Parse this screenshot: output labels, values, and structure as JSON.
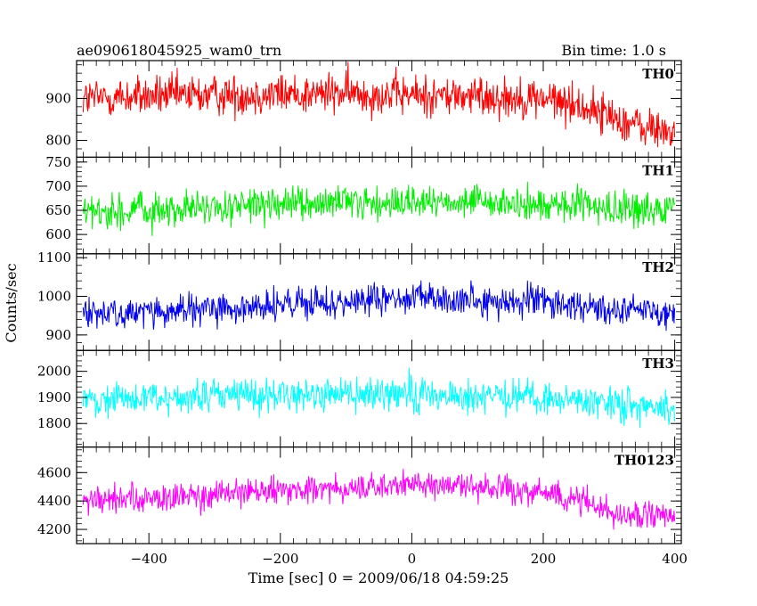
{
  "header": {
    "title": "ae090618045925_wam0_trn",
    "bin_time": "Bin time: 1.0 s"
  },
  "chart_data": [
    {
      "type": "line",
      "name": "TH0",
      "color": "#ff0000",
      "xlim": [
        -510,
        410
      ],
      "ylim": [
        760,
        990
      ],
      "yticks": [
        800,
        900
      ],
      "baseline": {
        "x": [
          -500,
          -400,
          -300,
          -200,
          -100,
          0,
          100,
          200,
          250,
          300,
          350,
          400
        ],
        "y": [
          900,
          905,
          908,
          910,
          912,
          908,
          905,
          900,
          885,
          860,
          830,
          820
        ]
      },
      "noise": 45
    },
    {
      "type": "line",
      "name": "TH1",
      "color": "#00ee00",
      "xlim": [
        -510,
        410
      ],
      "ylim": [
        560,
        760
      ],
      "yticks": [
        600,
        650,
        700,
        750
      ],
      "baseline": {
        "x": [
          -500,
          -300,
          -100,
          100,
          300,
          400
        ],
        "y": [
          645,
          655,
          665,
          665,
          655,
          650
        ]
      },
      "noise": 32
    },
    {
      "type": "line",
      "name": "TH2",
      "color": "#0000ee",
      "xlim": [
        -510,
        410
      ],
      "ylim": [
        860,
        1110
      ],
      "yticks": [
        900,
        1000,
        1100
      ],
      "baseline": {
        "x": [
          -500,
          -300,
          -100,
          0,
          100,
          200,
          300,
          400
        ],
        "y": [
          955,
          965,
          985,
          995,
          990,
          985,
          970,
          960
        ]
      },
      "noise": 38
    },
    {
      "type": "line",
      "name": "TH3",
      "color": "#00ffff",
      "xlim": [
        -510,
        410
      ],
      "ylim": [
        1710,
        2080
      ],
      "yticks": [
        1800,
        1900,
        2000
      ],
      "baseline": {
        "x": [
          -500,
          -300,
          -100,
          100,
          300,
          400
        ],
        "y": [
          1890,
          1905,
          1915,
          1905,
          1880,
          1860
        ]
      },
      "noise": 60
    },
    {
      "type": "line",
      "name": "TH0123",
      "color": "#ff00ff",
      "xlim": [
        -510,
        410
      ],
      "ylim": [
        4100,
        4780
      ],
      "yticks": [
        4200,
        4400,
        4600
      ],
      "baseline": {
        "x": [
          -500,
          -300,
          -100,
          0,
          100,
          200,
          250,
          300,
          400
        ],
        "y": [
          4400,
          4440,
          4490,
          4510,
          4500,
          4460,
          4420,
          4330,
          4270
        ]
      },
      "noise": 90
    }
  ],
  "x_axis": {
    "ticks": [
      -400,
      -200,
      0,
      200,
      400
    ],
    "label": "Time [sec] 0 = 2009/06/18 04:59:25"
  },
  "y_axis": {
    "label": "Counts/sec"
  }
}
